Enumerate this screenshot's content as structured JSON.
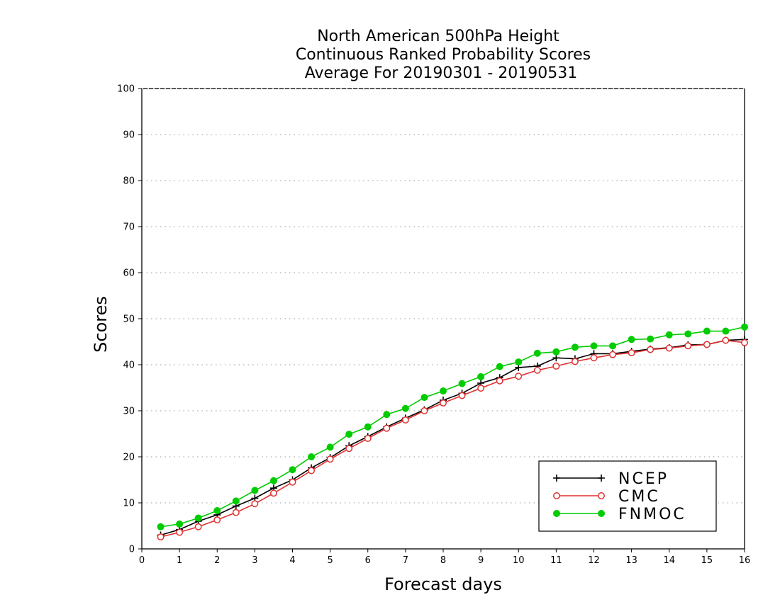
{
  "chart_data": {
    "type": "line",
    "title": [
      "North American 500hPa Height",
      "Continuous Ranked Probability Scores",
      "Average For 20190301 - 20190531"
    ],
    "xlabel": "Forecast days",
    "ylabel": "Scores",
    "xlim": [
      0,
      16
    ],
    "ylim": [
      0,
      100
    ],
    "xticks": [
      "0",
      "1",
      "2",
      "3",
      "4",
      "5",
      "6",
      "7",
      "8",
      "9",
      "10",
      "11",
      "12",
      "13",
      "14",
      "15",
      "16"
    ],
    "yticks": [
      "0",
      "10",
      "20",
      "30",
      "40",
      "50",
      "60",
      "70",
      "80",
      "90",
      "100"
    ],
    "grid": "horizontal dotted",
    "legend_position": "bottom-right",
    "x": [
      0.5,
      1,
      1.5,
      2,
      2.5,
      3,
      3.5,
      4,
      4.5,
      5,
      5.5,
      6,
      6.5,
      7,
      7.5,
      8,
      8.5,
      9,
      9.5,
      10,
      10.5,
      11,
      11.5,
      12,
      12.5,
      13,
      13.5,
      14,
      14.5,
      15,
      15.5,
      16
    ],
    "series": [
      {
        "name": "NCEP",
        "color": "#000000",
        "marker": "plus",
        "values": [
          3.0,
          4.2,
          6.0,
          7.4,
          9.3,
          11.0,
          13.2,
          15.0,
          17.6,
          19.8,
          22.4,
          24.4,
          26.5,
          28.4,
          30.2,
          32.3,
          33.8,
          36.0,
          37.2,
          39.4,
          39.7,
          41.5,
          41.3,
          42.4,
          42.4,
          42.9,
          43.4,
          43.7,
          44.3,
          44.4,
          45.3,
          45.5
        ]
      },
      {
        "name": "CMC",
        "color": "#e03030",
        "marker": "open-circle",
        "values": [
          2.6,
          3.6,
          4.8,
          6.3,
          7.9,
          9.8,
          12.1,
          14.5,
          17.0,
          19.5,
          21.8,
          24.0,
          26.2,
          28.0,
          30.0,
          31.7,
          33.3,
          34.9,
          36.5,
          37.5,
          38.8,
          39.7,
          40.7,
          41.5,
          42.2,
          42.6,
          43.3,
          43.6,
          44.1,
          44.4,
          45.3,
          44.8
        ]
      },
      {
        "name": "FNMOC",
        "color": "#00cc00",
        "marker": "filled-circle",
        "values": [
          4.8,
          5.4,
          6.7,
          8.3,
          10.4,
          12.7,
          14.8,
          17.2,
          20.0,
          22.1,
          24.9,
          26.5,
          29.2,
          30.5,
          32.9,
          34.3,
          35.9,
          37.4,
          39.6,
          40.6,
          42.5,
          42.8,
          43.8,
          44.1,
          44.1,
          45.5,
          45.6,
          46.5,
          46.7,
          47.3,
          47.3,
          48.2
        ]
      }
    ]
  }
}
